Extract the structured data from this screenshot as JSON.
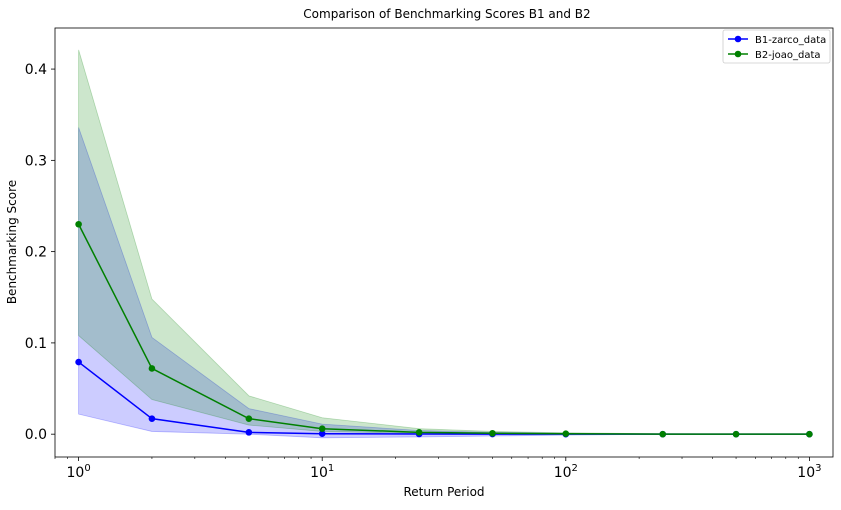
{
  "chart_data": {
    "type": "line",
    "title": "Comparison of Benchmarking Scores B1 and B2",
    "xlabel": "Return Period",
    "ylabel": "Benchmarking Score",
    "xscale": "log",
    "xlim": [
      0.8,
      1250
    ],
    "ylim": [
      -0.025,
      0.445
    ],
    "x_ticks": [
      {
        "value": 1,
        "base": "10",
        "exp": "0"
      },
      {
        "value": 10,
        "base": "10",
        "exp": "1"
      },
      {
        "value": 100,
        "base": "10",
        "exp": "2"
      },
      {
        "value": 1000,
        "base": "10",
        "exp": "3"
      }
    ],
    "y_ticks": [
      {
        "value": 0.0,
        "label": "0.0"
      },
      {
        "value": 0.1,
        "label": "0.1"
      },
      {
        "value": 0.2,
        "label": "0.2"
      },
      {
        "value": 0.3,
        "label": "0.3"
      },
      {
        "value": 0.4,
        "label": "0.4"
      }
    ],
    "x": [
      1,
      2,
      5,
      10,
      25,
      50,
      100,
      250,
      500,
      1000
    ],
    "series": [
      {
        "name": "B1-zarco_data",
        "color": "#0000ff",
        "fill_color": "#0000ff",
        "fill_opacity": 0.2,
        "values": [
          0.079,
          0.017,
          0.002,
          0.0005,
          0.0002,
          0.0001,
          0.0,
          0.0,
          0.0,
          0.0
        ],
        "lower": [
          0.022,
          0.003,
          0.0,
          -0.004,
          -0.003,
          -0.002,
          -0.001,
          0.0,
          0.0,
          0.0
        ],
        "upper": [
          0.336,
          0.106,
          0.028,
          0.011,
          0.004,
          0.002,
          0.001,
          0.0005,
          0.0002,
          0.0001
        ]
      },
      {
        "name": "B2-joao_data",
        "color": "#008000",
        "fill_color": "#008000",
        "fill_opacity": 0.2,
        "values": [
          0.23,
          0.072,
          0.017,
          0.006,
          0.002,
          0.001,
          0.0005,
          0.0,
          0.0,
          0.0
        ],
        "lower": [
          0.108,
          0.038,
          0.01,
          0.003,
          0.001,
          0.0005,
          0.0002,
          0.0,
          0.0,
          0.0
        ],
        "upper": [
          0.421,
          0.148,
          0.042,
          0.018,
          0.006,
          0.003,
          0.0015,
          0.0005,
          0.0002,
          0.0001
        ]
      }
    ],
    "legend": "top-right",
    "grid": false
  }
}
